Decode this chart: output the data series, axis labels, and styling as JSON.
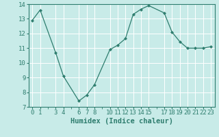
{
  "x": [
    0,
    1,
    3,
    4,
    6,
    7,
    8,
    10,
    11,
    12,
    13,
    14,
    15,
    17,
    18,
    19,
    20,
    21,
    22,
    23
  ],
  "y": [
    12.9,
    13.6,
    10.7,
    9.1,
    7.4,
    7.8,
    8.5,
    10.9,
    11.2,
    11.65,
    13.3,
    13.65,
    13.9,
    13.4,
    12.1,
    11.45,
    11.0,
    11.0,
    11.0,
    11.1
  ],
  "line_color": "#2e7d6e",
  "marker_color": "#2e7d6e",
  "bg_color": "#c8ebe8",
  "grid_color": "#b0d8d4",
  "xlabel": "Humidex (Indice chaleur)",
  "xlim": [
    -0.5,
    23.5
  ],
  "ylim": [
    7,
    14
  ],
  "yticks": [
    7,
    8,
    9,
    10,
    11,
    12,
    13,
    14
  ],
  "xticks": [
    0,
    1,
    3,
    4,
    6,
    7,
    8,
    10,
    11,
    12,
    13,
    14,
    15,
    17,
    18,
    19,
    20,
    21,
    22,
    23
  ],
  "xlabel_fontsize": 7.5,
  "tick_fontsize": 6.5
}
